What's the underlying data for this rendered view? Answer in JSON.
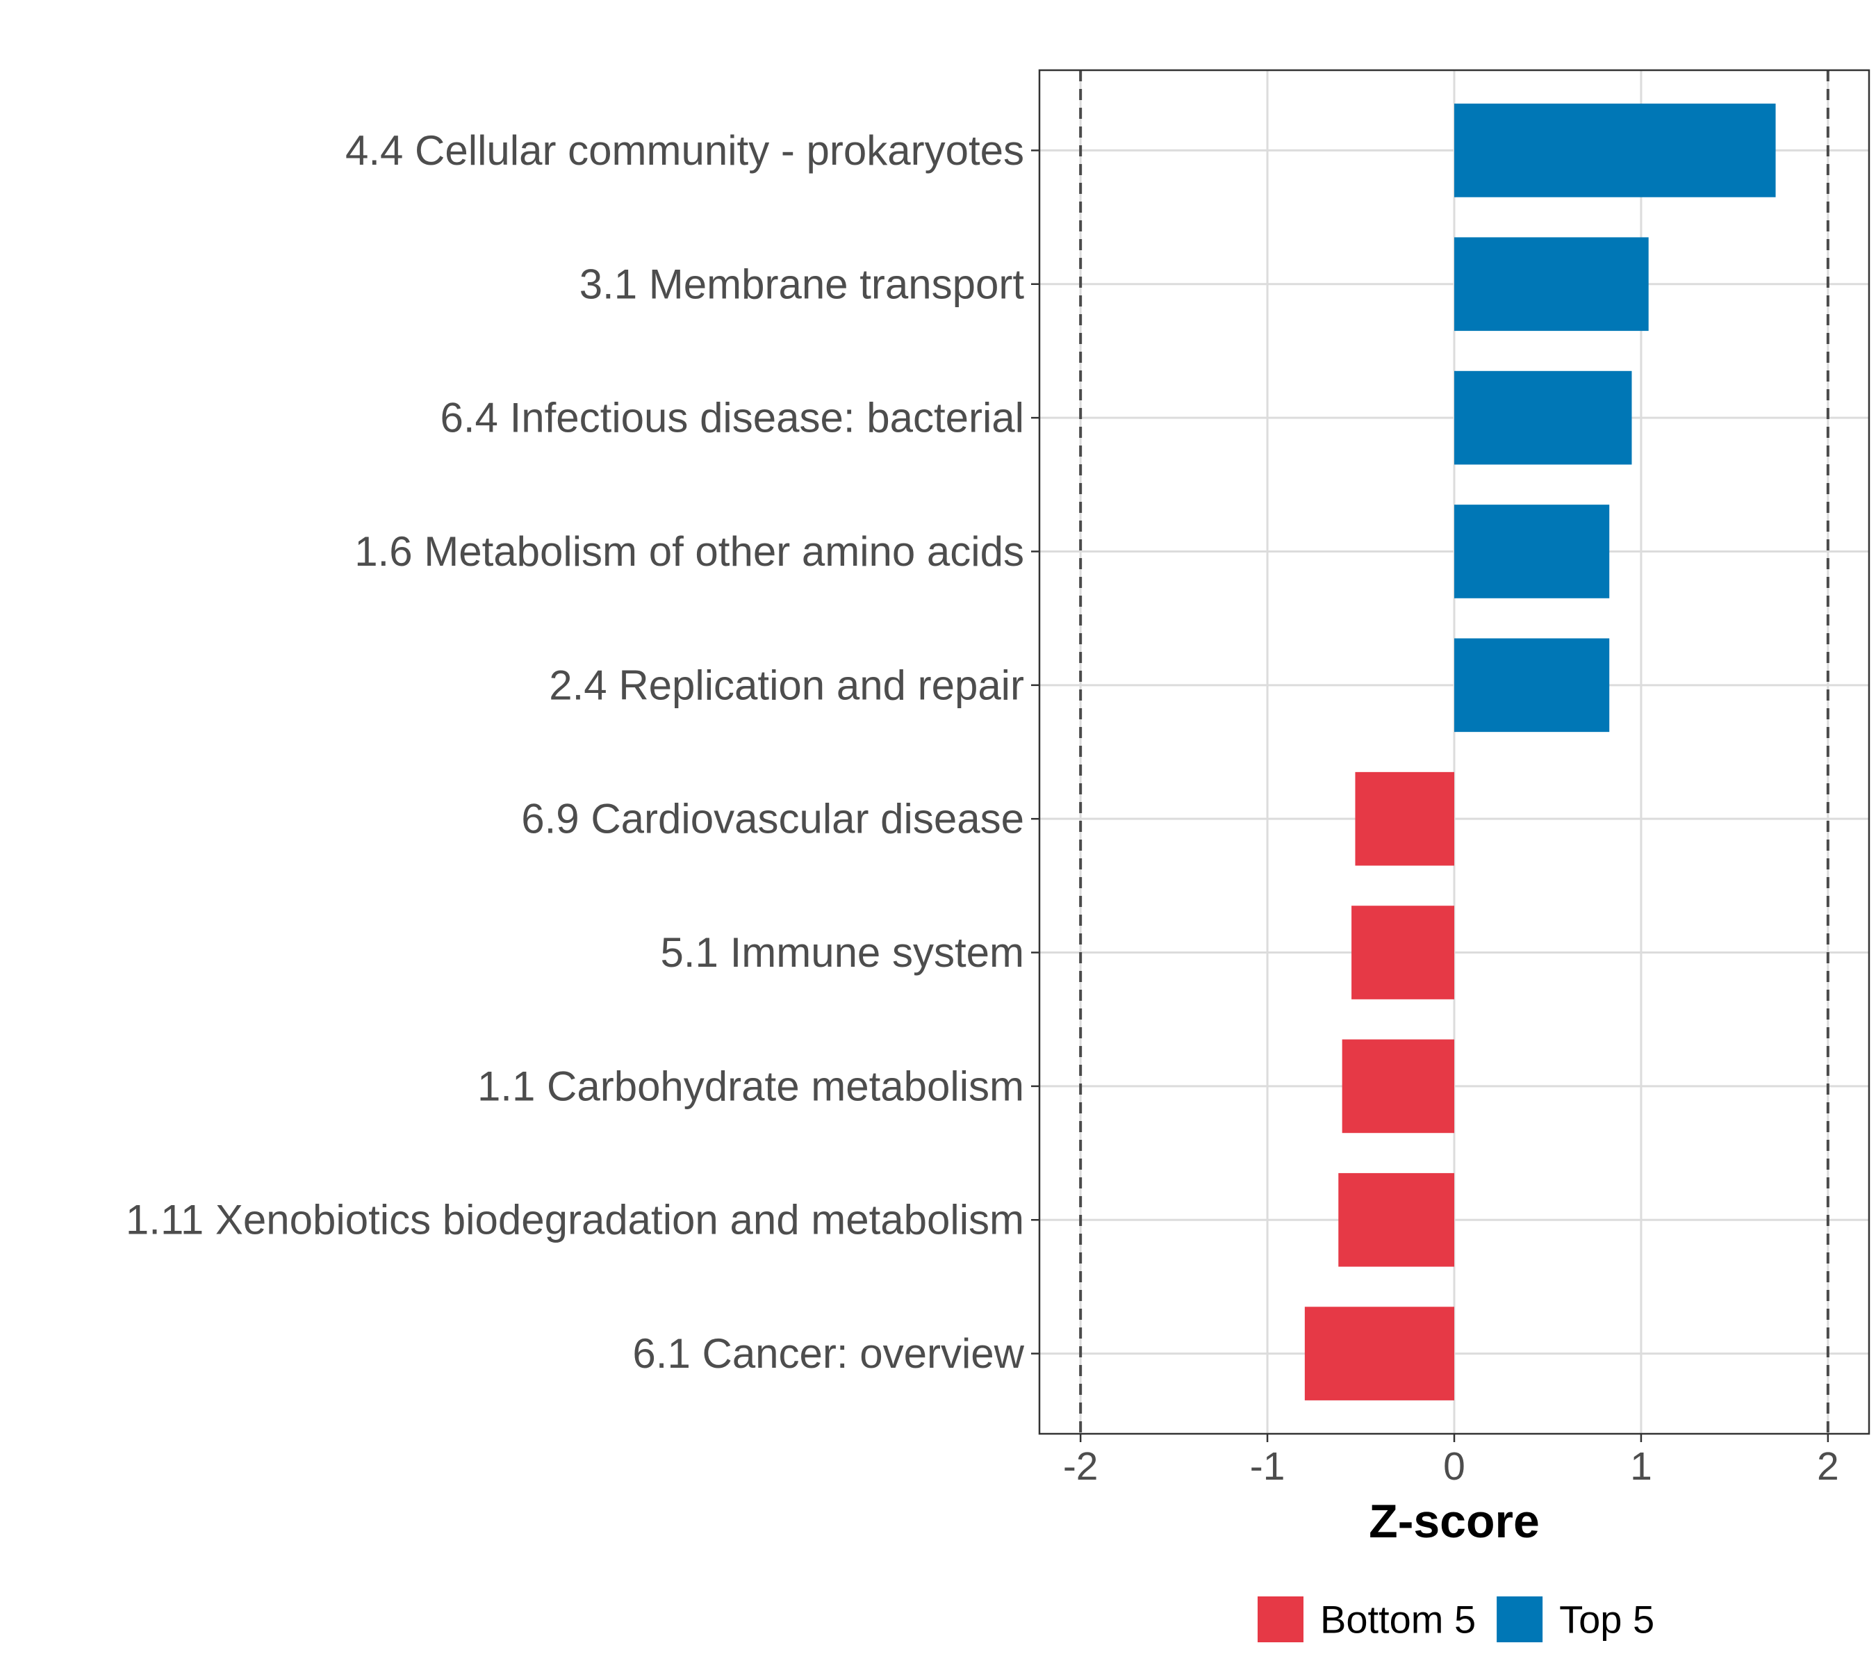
{
  "chart_data": {
    "type": "bar",
    "orientation": "horizontal",
    "categories": [
      "4.4 Cellular community - prokaryotes",
      "3.1 Membrane transport",
      "6.4 Infectious disease: bacterial",
      "1.6 Metabolism of other amino acids",
      "2.4 Replication and repair",
      "6.9 Cardiovascular disease",
      "5.1 Immune system",
      "1.1 Carbohydrate metabolism",
      "1.11 Xenobiotics biodegradation and metabolism",
      "6.1 Cancer: overview"
    ],
    "values": [
      1.72,
      1.04,
      0.95,
      0.83,
      0.83,
      -0.53,
      -0.55,
      -0.6,
      -0.62,
      -0.8
    ],
    "groups": [
      "Top 5",
      "Top 5",
      "Top 5",
      "Top 5",
      "Top 5",
      "Bottom 5",
      "Bottom 5",
      "Bottom 5",
      "Bottom 5",
      "Bottom 5"
    ],
    "xlabel": "Z-score",
    "xlim": [
      -2.22,
      2.22
    ],
    "xticks": [
      -2,
      -1,
      0,
      1,
      2
    ],
    "xtick_labels": [
      "-2",
      "-1",
      "0",
      "1",
      "2"
    ],
    "reference_lines": [
      -2,
      2
    ],
    "grid": true,
    "legend_position": "bottom",
    "legend": [
      {
        "name": "Bottom 5",
        "color": "#E63946"
      },
      {
        "name": "Top 5",
        "color": "#0077B6"
      }
    ],
    "colors": {
      "Top 5": "#0077B6",
      "Bottom 5": "#E63946"
    }
  }
}
